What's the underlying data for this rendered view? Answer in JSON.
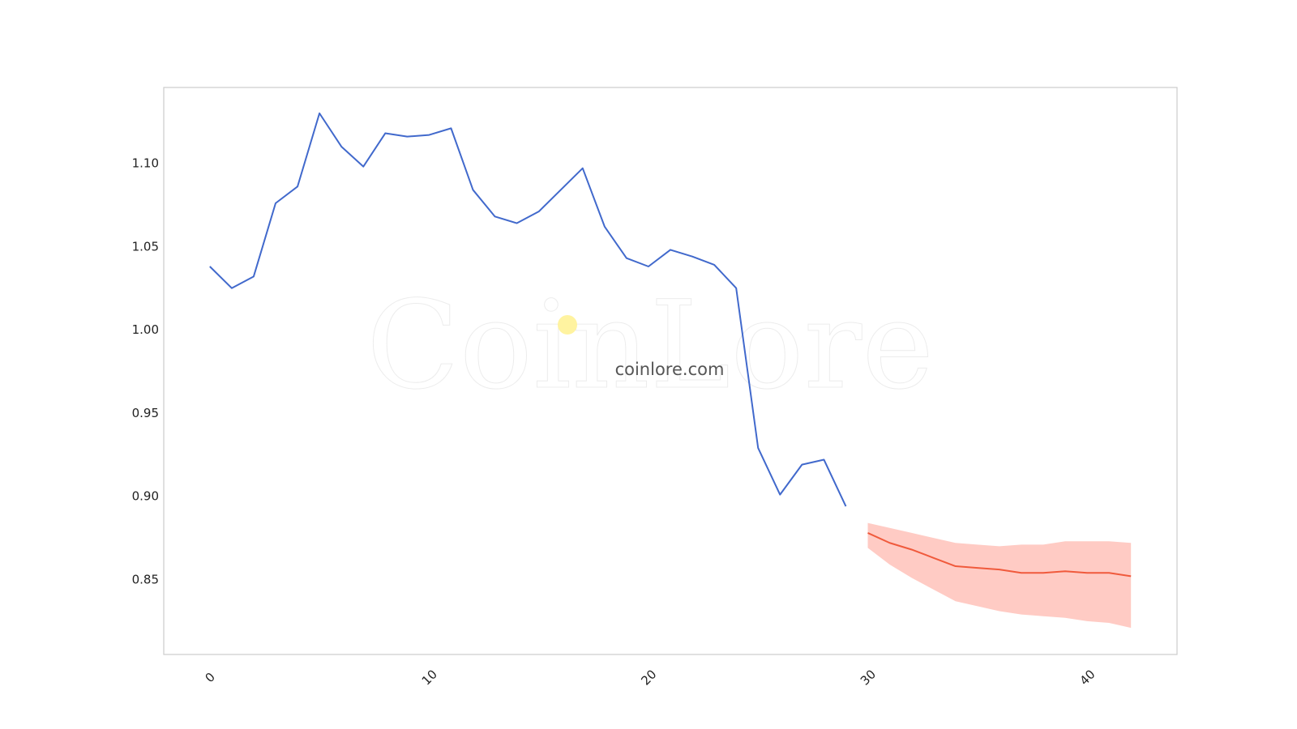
{
  "watermark": {
    "brand": "CoinLore",
    "site": "coinlore.com",
    "dot_color": "#fff3a0"
  },
  "chart_data": {
    "type": "line",
    "title": "",
    "xlabel": "",
    "ylabel": "",
    "xlim": [
      -2.1,
      44.1
    ],
    "ylim": [
      0.805,
      1.1455
    ],
    "grid": false,
    "x_ticks": [
      0,
      10,
      20,
      30,
      40
    ],
    "y_ticks": [
      0.85,
      0.9,
      0.95,
      1.0,
      1.05,
      1.1
    ],
    "x_tick_labels": [
      "0",
      "10",
      "20",
      "30",
      "40"
    ],
    "y_tick_labels": [
      "0.85",
      "0.90",
      "0.95",
      "1.00",
      "1.05",
      "1.10"
    ],
    "series": [
      {
        "role": "history",
        "color": "#4169cc",
        "x": [
          0,
          1,
          2,
          3,
          4,
          5,
          6,
          7,
          8,
          9,
          10,
          11,
          12,
          13,
          14,
          15,
          16,
          17,
          18,
          19,
          20,
          21,
          22,
          23,
          24,
          25,
          26,
          27,
          28,
          29
        ],
        "values": [
          1.038,
          1.025,
          1.032,
          1.076,
          1.086,
          1.13,
          1.11,
          1.098,
          1.118,
          1.116,
          1.117,
          1.121,
          1.084,
          1.068,
          1.064,
          1.071,
          1.084,
          1.097,
          1.062,
          1.043,
          1.038,
          1.048,
          1.044,
          1.039,
          1.025,
          0.929,
          0.901,
          0.919,
          0.922,
          0.894
        ]
      },
      {
        "role": "forecast",
        "color": "#f05a3c",
        "band_color": "#ffcbc4",
        "x": [
          30,
          31,
          32,
          33,
          34,
          35,
          36,
          37,
          38,
          39,
          40,
          41,
          42
        ],
        "values": [
          0.878,
          0.872,
          0.868,
          0.863,
          0.858,
          0.857,
          0.856,
          0.854,
          0.854,
          0.855,
          0.854,
          0.854,
          0.852
        ],
        "upper": [
          0.884,
          0.881,
          0.878,
          0.875,
          0.872,
          0.871,
          0.87,
          0.871,
          0.871,
          0.873,
          0.873,
          0.873,
          0.872
        ],
        "lower": [
          0.869,
          0.859,
          0.851,
          0.844,
          0.837,
          0.834,
          0.831,
          0.829,
          0.828,
          0.827,
          0.825,
          0.824,
          0.821
        ]
      }
    ]
  }
}
